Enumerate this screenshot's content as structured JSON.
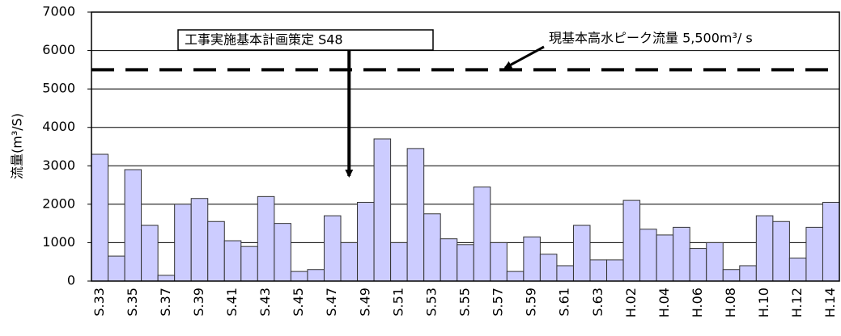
{
  "chart_data": {
    "type": "bar",
    "y_label": "流量(m³/S)",
    "categories": [
      "S.33",
      null,
      "S.35",
      null,
      "S.37",
      null,
      "S.39",
      null,
      "S.41",
      null,
      "S.43",
      null,
      "S.45",
      null,
      "S.47",
      null,
      "S.49",
      null,
      "S.51",
      null,
      "S.53",
      null,
      "S.55",
      null,
      "S.57",
      null,
      "S.59",
      null,
      "S.61",
      null,
      "S.63",
      null,
      "H.02",
      null,
      "H.04",
      null,
      "H.06",
      null,
      "H.08",
      null,
      "H.10",
      null,
      "H.12",
      null,
      "H.14"
    ],
    "values": [
      3300,
      650,
      2900,
      1450,
      150,
      2000,
      2150,
      1550,
      1050,
      900,
      2200,
      1500,
      250,
      300,
      1700,
      1000,
      2050,
      3700,
      1000,
      3450,
      1750,
      1100,
      950,
      2450,
      1000,
      250,
      1150,
      700,
      400,
      1450,
      550,
      550,
      2100,
      1350,
      1200,
      1400,
      850,
      1000,
      300,
      400,
      1700,
      1550,
      600,
      1400,
      2050
    ],
    "color": "#ccccff",
    "ylim": [
      0,
      7000
    ],
    "yticks": [
      0,
      1000,
      2000,
      3000,
      4000,
      5000,
      6000,
      7000
    ],
    "grid": true,
    "reference_line": 5500,
    "reference_label": "現基本高水ピーク流量 5,500m³/ s",
    "event_label": "工事実施基本計画策定 S48"
  }
}
